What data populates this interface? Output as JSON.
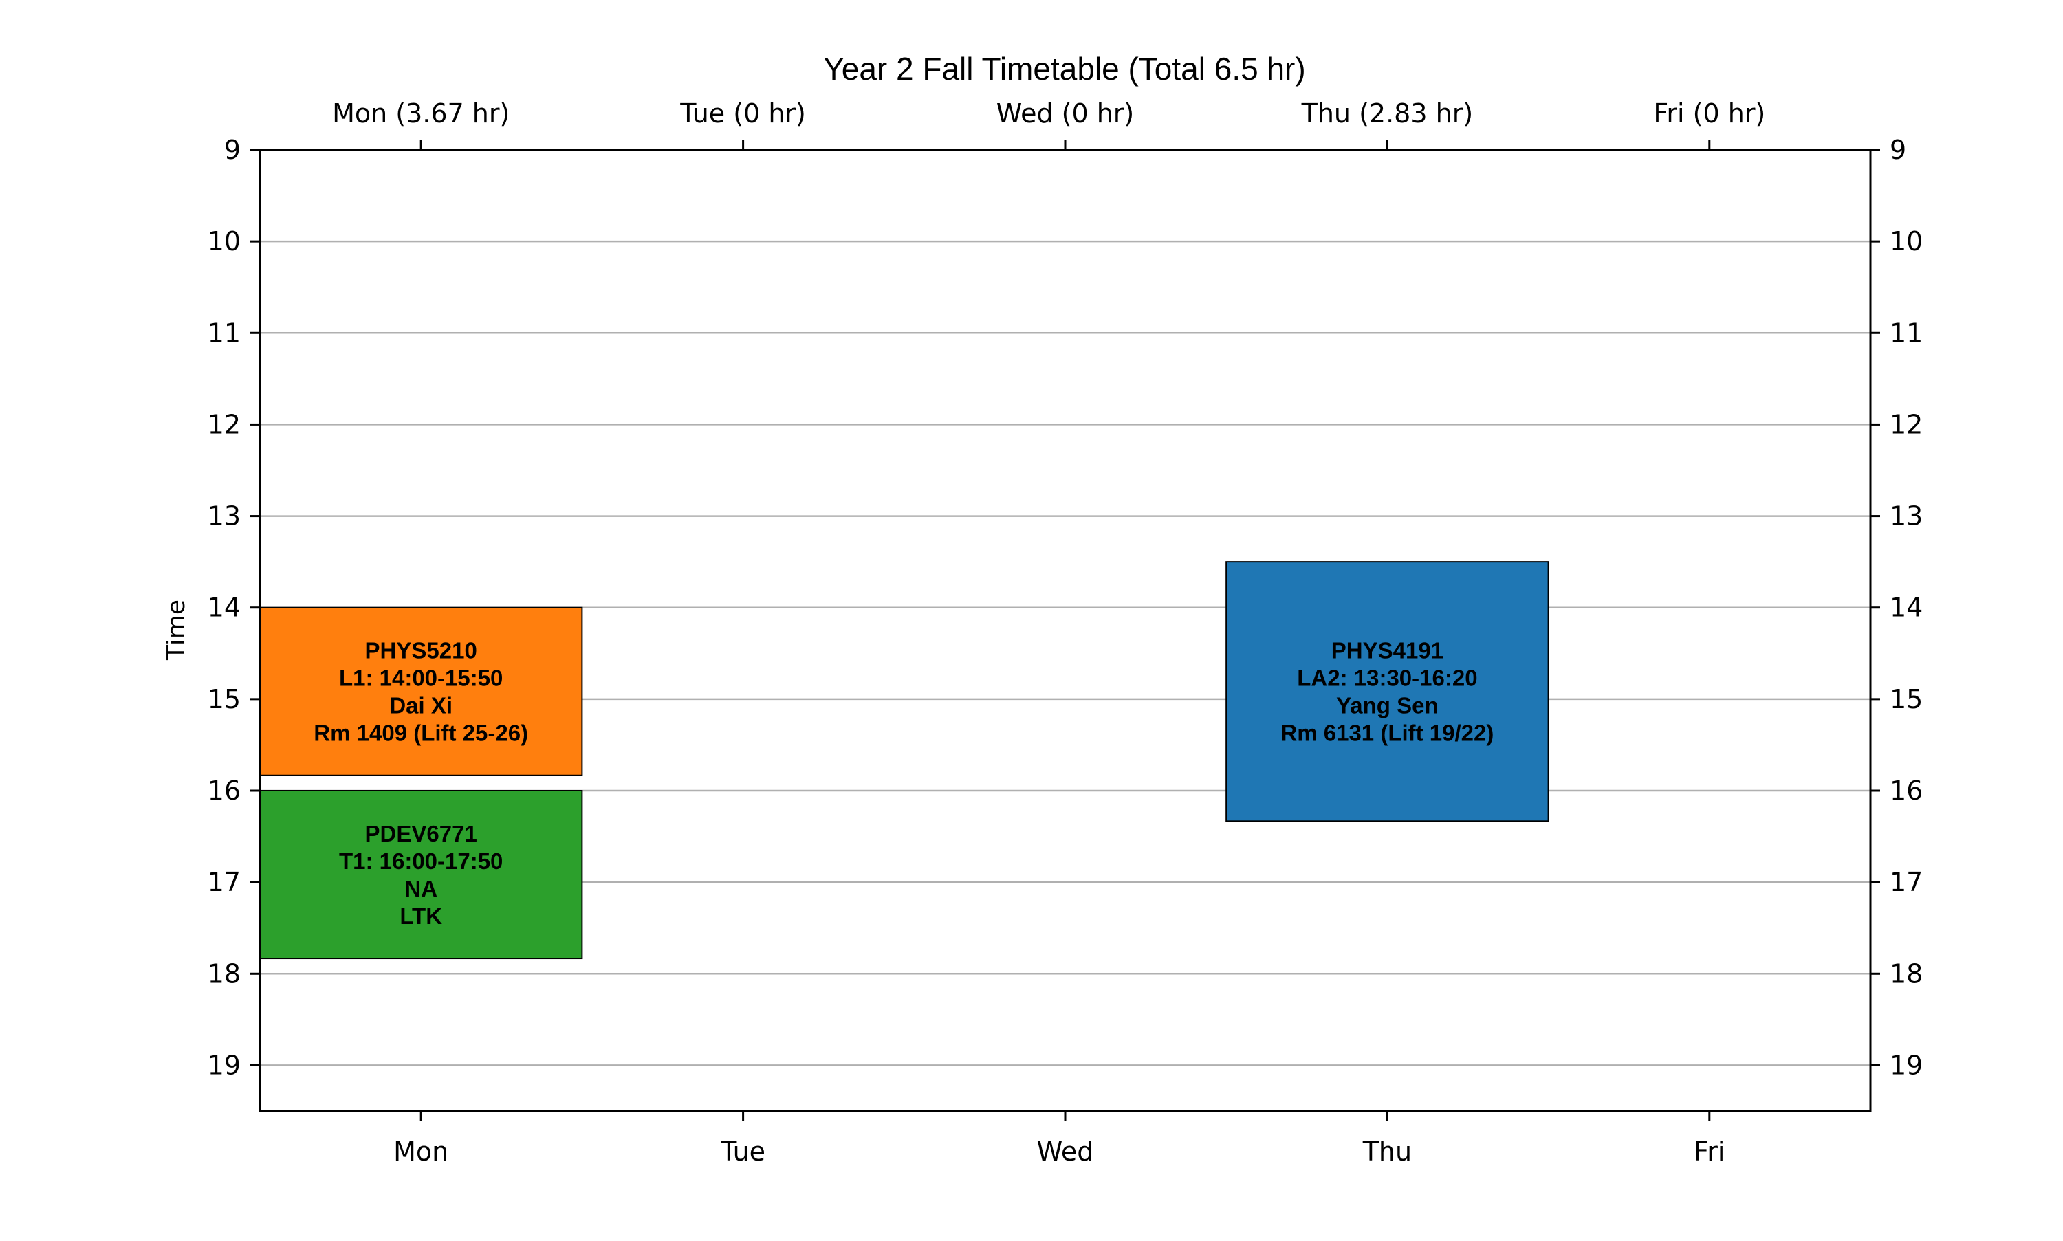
{
  "chart_data": {
    "type": "timetable",
    "title": "Year 2 Fall Timetable (Total 6.5 hr)",
    "ylabel": "Time",
    "days": [
      "Mon",
      "Tue",
      "Wed",
      "Thu",
      "Fri"
    ],
    "top_labels": [
      "Mon (3.67 hr)",
      "Tue (0 hr)",
      "Wed (0 hr)",
      "Thu (2.83 hr)",
      "Fri (0 hr)"
    ],
    "y_ticks": [
      9,
      10,
      11,
      12,
      13,
      14,
      15,
      16,
      17,
      18,
      19
    ],
    "ylim": [
      9,
      19.5
    ],
    "grid": true,
    "events": [
      {
        "day": "Mon",
        "start": 14.0,
        "end": 15.833,
        "color": "#ff7f0e",
        "lines": [
          "PHYS5210",
          "L1: 14:00-15:50",
          "Dai Xi",
          "Rm 1409 (Lift 25-26)"
        ]
      },
      {
        "day": "Mon",
        "start": 16.0,
        "end": 17.833,
        "color": "#2ca02c",
        "lines": [
          "PDEV6771",
          "T1: 16:00-17:50",
          "NA",
          "LTK"
        ]
      },
      {
        "day": "Thu",
        "start": 13.5,
        "end": 16.333,
        "color": "#1f77b4",
        "lines": [
          "PHYS4191",
          "LA2: 13:30-16:20",
          "Yang Sen",
          "Rm 6131 (Lift 19/22)"
        ]
      }
    ]
  }
}
